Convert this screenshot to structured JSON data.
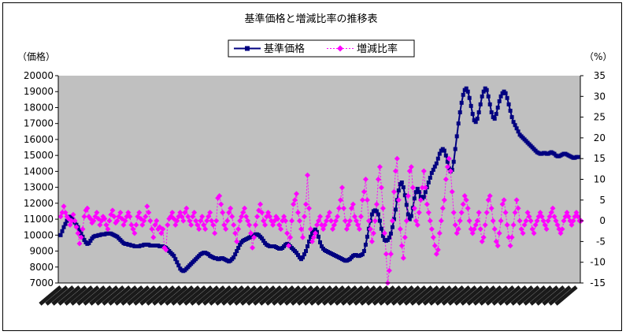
{
  "chart_data": {
    "type": "line",
    "title": "基準価格と増減比率の推移表",
    "left_axis": {
      "unit_label": "（価格）",
      "ylim": [
        7000,
        20000
      ],
      "ticks": [
        7000,
        8000,
        9000,
        10000,
        11000,
        12000,
        13000,
        14000,
        15000,
        16000,
        17000,
        18000,
        19000,
        20000
      ]
    },
    "right_axis": {
      "unit_label": "（%）",
      "ylim": [
        -15,
        35
      ],
      "ticks": [
        -15,
        -10,
        -5,
        0,
        5,
        10,
        15,
        20,
        25,
        30,
        35
      ]
    },
    "plot_background": "#c0c0c0",
    "legend_position": "top-center",
    "x_note": "approx. 330 date-labelled observations (tick labels illegible)",
    "series": [
      {
        "name": "基準価格",
        "axis": "left",
        "color": "#000080",
        "marker": "square",
        "values": [
          10000,
          10250,
          10500,
          10700,
          10900,
          11050,
          11150,
          11100,
          10950,
          10800,
          10650,
          10500,
          10300,
          10100,
          9900,
          9700,
          9550,
          9450,
          9500,
          9650,
          9800,
          9900,
          9950,
          9950,
          10000,
          10000,
          10050,
          10050,
          10050,
          10100,
          10100,
          10100,
          10100,
          10050,
          10000,
          9950,
          9900,
          9800,
          9700,
          9600,
          9500,
          9450,
          9450,
          9400,
          9400,
          9350,
          9350,
          9300,
          9300,
          9300,
          9300,
          9350,
          9350,
          9400,
          9400,
          9400,
          9400,
          9350,
          9350,
          9350,
          9350,
          9350,
          9350,
          9300,
          9300,
          9300,
          9250,
          9200,
          9100,
          9000,
          8900,
          8800,
          8700,
          8500,
          8300,
          8100,
          7900,
          7800,
          7750,
          7800,
          7900,
          8000,
          8100,
          8200,
          8300,
          8400,
          8500,
          8600,
          8700,
          8800,
          8850,
          8900,
          8900,
          8850,
          8800,
          8700,
          8650,
          8600,
          8550,
          8550,
          8500,
          8500,
          8550,
          8550,
          8500,
          8450,
          8400,
          8350,
          8400,
          8500,
          8600,
          8800,
          9000,
          9200,
          9400,
          9550,
          9650,
          9700,
          9750,
          9800,
          9850,
          9900,
          9950,
          10000,
          10050,
          10050,
          10000,
          9900,
          9800,
          9650,
          9500,
          9400,
          9350,
          9300,
          9300,
          9300,
          9300,
          9250,
          9200,
          9150,
          9150,
          9200,
          9300,
          9400,
          9450,
          9400,
          9300,
          9200,
          9100,
          9000,
          8900,
          8750,
          8600,
          8500,
          8600,
          8800,
          9000,
          9300,
          9600,
          9900,
          10150,
          10300,
          10350,
          10200,
          9900,
          9550,
          9300,
          9150,
          9050,
          9000,
          8950,
          8900,
          8850,
          8800,
          8750,
          8700,
          8650,
          8600,
          8550,
          8500,
          8450,
          8400,
          8400,
          8450,
          8500,
          8600,
          8700,
          8750,
          8750,
          8700,
          8700,
          8750,
          8800,
          9000,
          9400,
          9900,
          10400,
          10900,
          11300,
          11500,
          11550,
          11500,
          11300,
          10900,
          10400,
          9950,
          9700,
          9650,
          9700,
          9850,
          10100,
          10500,
          11000,
          11600,
          12200,
          12800,
          13200,
          13300,
          13000,
          12500,
          11900,
          11300,
          11000,
          11200,
          11700,
          12300,
          12700,
          12900,
          12700,
          12400,
          12300,
          12400,
          12700,
          13000,
          13300,
          13600,
          13900,
          14100,
          14300,
          14500,
          14800,
          15100,
          15300,
          15400,
          15300,
          15000,
          14600,
          14200,
          14000,
          14100,
          14600,
          15400,
          16200,
          17000,
          17700,
          18300,
          18800,
          19100,
          19200,
          19000,
          18600,
          18100,
          17600,
          17200,
          17100,
          17300,
          17700,
          18200,
          18700,
          19000,
          19200,
          19100,
          18700,
          18200,
          17700,
          17400,
          17300,
          17600,
          18000,
          18400,
          18700,
          18900,
          19000,
          18900,
          18600,
          18200,
          17800,
          17400,
          17100,
          16900,
          16700,
          16500,
          16300,
          16200,
          16100,
          16000,
          15900,
          15800,
          15700,
          15600,
          15500,
          15400,
          15300,
          15200,
          15150,
          15100,
          15100,
          15150,
          15150,
          15100,
          15100,
          15150,
          15200,
          15150,
          15100,
          15000,
          14950,
          14950,
          15000,
          15050,
          15100,
          15100,
          15050,
          15000,
          14950,
          14900,
          14850,
          14850,
          14900,
          14900
        ]
      },
      {
        "name": "増減比率",
        "axis": "right",
        "color": "#ff00ff",
        "marker": "diamond",
        "values": [
          1.0,
          2.0,
          3.5,
          2.0,
          1.0,
          0.5,
          -1.0,
          0.0,
          1.5,
          0.0,
          -1.5,
          -3.0,
          -5.5,
          -4.0,
          -2.0,
          1.0,
          2.5,
          3.0,
          1.0,
          0.5,
          -0.5,
          0.0,
          1.0,
          2.0,
          0.5,
          -1.0,
          0.0,
          1.0,
          0.5,
          -1.0,
          -2.0,
          0.0,
          1.5,
          2.5,
          1.0,
          -0.5,
          0.0,
          1.0,
          2.0,
          0.5,
          -1.0,
          0.0,
          1.0,
          2.0,
          1.0,
          -1.0,
          -2.0,
          -3.0,
          -1.0,
          1.0,
          2.0,
          0.5,
          -1.0,
          0.0,
          1.0,
          3.5,
          2.0,
          0.0,
          -2.0,
          -4.0,
          -1.0,
          0.0,
          -2.0,
          -1.5,
          -3.0,
          -2.0,
          -6.5,
          -7.0,
          -1.0,
          0.5,
          1.0,
          2.0,
          0.5,
          -1.0,
          0.0,
          1.0,
          2.0,
          1.0,
          0.0,
          2.0,
          3.0,
          1.0,
          0.0,
          -1.0,
          1.0,
          2.0,
          0.0,
          -1.0,
          -2.0,
          0.0,
          1.0,
          -1.0,
          -2.0,
          0.0,
          1.0,
          2.0,
          0.0,
          -1.0,
          -3.0,
          0.0,
          5.5,
          6.0,
          4.0,
          2.0,
          -1.0,
          -2.0,
          0.0,
          2.0,
          3.0,
          1.0,
          -1.0,
          -3.0,
          -5.0,
          -2.0,
          0.0,
          1.0,
          2.0,
          3.0,
          1.0,
          0.0,
          -1.0,
          -3.0,
          -6.5,
          -4.0,
          -1.0,
          1.0,
          2.5,
          4.0,
          2.0,
          0.0,
          -1.0,
          1.0,
          2.0,
          1.0,
          0.0,
          -1.0,
          0.0,
          1.0,
          0.5,
          -1.0,
          -2.0,
          0.0,
          1.0,
          0.0,
          -3.0,
          -6.0,
          -4.0,
          0.0,
          4.0,
          5.0,
          6.5,
          2.0,
          0.0,
          -2.0,
          -4.0,
          1.0,
          4.0,
          11.0,
          3.0,
          -2.0,
          -5.0,
          -4.0,
          -3.0,
          -1.0,
          0.0,
          1.0,
          -1.0,
          -2.0,
          -1.0,
          0.0,
          1.0,
          2.0,
          0.0,
          -2.0,
          -1.0,
          0.0,
          1.0,
          3.0,
          5.0,
          8.0,
          3.0,
          0.0,
          -2.0,
          -1.0,
          0.0,
          3.0,
          4.0,
          1.0,
          0.0,
          -1.0,
          -2.0,
          1.0,
          5.0,
          7.0,
          10.0,
          5.0,
          0.0,
          -2.0,
          -5.0,
          -3.0,
          0.0,
          4.0,
          10.0,
          13.0,
          8.0,
          3.0,
          -3.0,
          -8.0,
          -15.0,
          -12.0,
          -8.0,
          0.0,
          7.0,
          12.0,
          15.0,
          5.0,
          -2.0,
          -6.0,
          -9.0,
          -4.0,
          0.0,
          6.0,
          12.0,
          13.0,
          8.0,
          3.0,
          0.0,
          -1.0,
          2.0,
          5.0,
          8.0,
          12.0,
          8.0,
          4.0,
          2.0,
          0.0,
          -2.0,
          -4.0,
          -6.0,
          -8.0,
          -7.0,
          -3.0,
          0.0,
          3.0,
          5.0,
          10.0,
          13.0,
          15.0,
          12.0,
          7.0,
          2.0,
          -1.0,
          -3.0,
          -2.0,
          0.0,
          2.0,
          4.0,
          6.0,
          5.0,
          3.0,
          0.0,
          -2.0,
          -3.0,
          -2.0,
          -1.0,
          0.0,
          2.0,
          -2.0,
          -5.0,
          -4.0,
          -1.0,
          2.0,
          5.0,
          6.0,
          3.0,
          0.0,
          -2.0,
          -5.0,
          -6.0,
          -3.0,
          0.0,
          4.0,
          5.0,
          2.0,
          -1.0,
          -4.0,
          -6.0,
          -4.0,
          -1.0,
          2.0,
          5.0,
          3.0,
          0.0,
          -2.0,
          -3.0,
          -1.0,
          0.0,
          2.0,
          1.0,
          0.0,
          -2.0,
          -3.0,
          -1.0,
          0.0,
          1.0,
          2.0,
          1.0,
          0.0,
          -1.0,
          -2.0,
          0.0,
          1.0,
          2.0,
          3.0,
          1.0,
          0.0,
          -1.0,
          -2.0,
          -3.0,
          -2.0,
          0.0,
          1.0,
          2.0,
          1.0,
          0.0,
          -1.0,
          0.0,
          1.0,
          2.0,
          1.0,
          0.0,
          0.0
        ]
      }
    ]
  }
}
